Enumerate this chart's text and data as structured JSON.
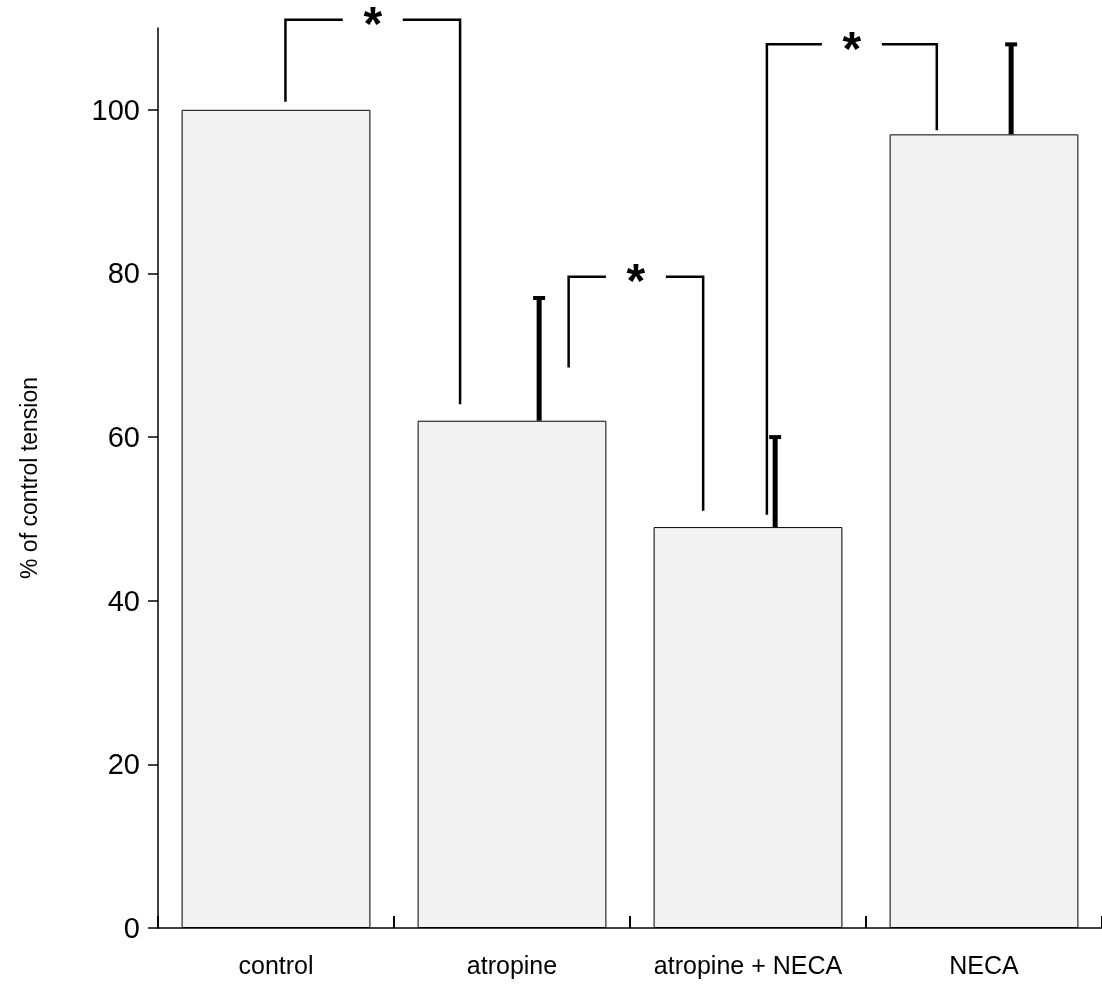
{
  "chart_data": {
    "type": "bar",
    "ylabel": "% of control tension",
    "categories": [
      "control",
      "atropine",
      "atropine + NECA",
      "NECA"
    ],
    "values": [
      100,
      62,
      49,
      97
    ],
    "errors": [
      null,
      [
        62,
        77
      ],
      [
        49,
        60
      ],
      [
        97,
        108
      ]
    ],
    "color": "#f2f2f2",
    "ylim": [
      0,
      110
    ],
    "yticks": [
      0,
      20,
      40,
      60,
      80,
      100
    ],
    "grid": false,
    "annotations": [
      "*",
      "*",
      "*"
    ]
  }
}
